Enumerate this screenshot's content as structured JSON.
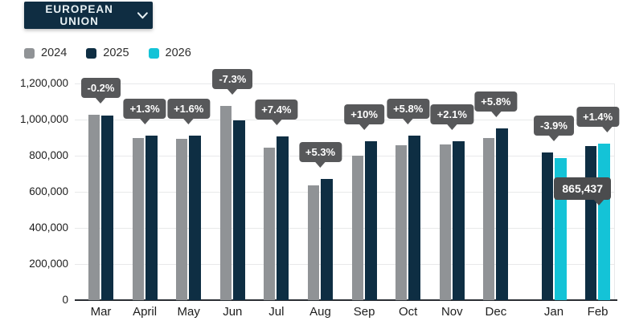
{
  "header": {
    "dropdown_label": "EUROPEAN UNION",
    "chevron_icon": "chevron-down"
  },
  "legend": [
    {
      "label": "2024",
      "color": "#909396"
    },
    {
      "label": "2025",
      "color": "#0e2e43"
    },
    {
      "label": "2026",
      "color": "#14c3d7"
    }
  ],
  "colors": {
    "bar_2024": "#909396",
    "bar_2025": "#0e2e43",
    "bar_2026": "#14c3d7",
    "callout_bg": "#57585a",
    "tooltip_bg": "#4b4c4e",
    "dropdown_bg": "#0f2d42",
    "gridline": "#e8e9ea",
    "axis_line": "#2a2e33"
  },
  "chart_data": {
    "type": "bar",
    "categories": [
      "Mar",
      "April",
      "May",
      "Jun",
      "Jul",
      "Aug",
      "Sep",
      "Oct",
      "Nov",
      "Dec",
      "Jan",
      "Feb"
    ],
    "series": [
      {
        "name": "2024",
        "color": "#909396",
        "values": [
          1025000,
          900000,
          895000,
          1075000,
          845000,
          635000,
          800000,
          860000,
          862000,
          900000,
          null,
          null
        ]
      },
      {
        "name": "2025",
        "color": "#0e2e43",
        "values": [
          1023000,
          912000,
          909000,
          997000,
          908000,
          669000,
          880000,
          910000,
          880000,
          952000,
          820000,
          853500
        ]
      },
      {
        "name": "2026",
        "color": "#14c3d7",
        "values": [
          null,
          null,
          null,
          null,
          null,
          null,
          null,
          null,
          null,
          null,
          788000,
          865437
        ]
      }
    ],
    "callouts": [
      "-0.2%",
      "+1.3%",
      "+1.6%",
      "-7.3%",
      "+7.4%",
      "+5.3%",
      "+10%",
      "+5.8%",
      "+2.1%",
      "+5.8%",
      "-3.9%",
      "+1.4%"
    ],
    "tooltip": {
      "value": "865,437",
      "month": "Feb",
      "series": "2026"
    },
    "y_ticks": [
      "0",
      "200,000",
      "400,000",
      "600,000",
      "800,000",
      "1,000,000",
      "1,200,000"
    ],
    "ylim": [
      0,
      1200000
    ],
    "grid": true,
    "legend_position": "top-left"
  }
}
